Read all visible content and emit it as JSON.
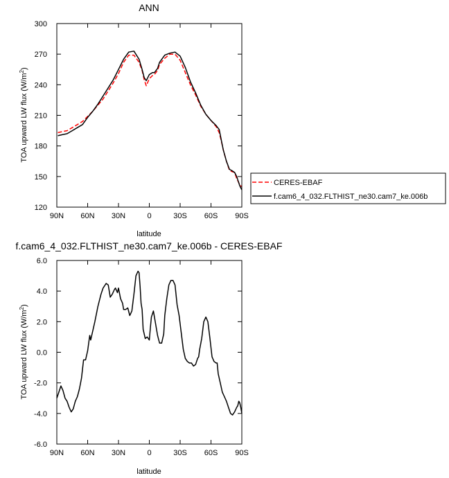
{
  "chart_data": [
    {
      "type": "line",
      "title": "ANN",
      "ylabel": "TOA upward LW flux (W/m",
      "ylabel_sup": "2",
      "ylabel_close": ")",
      "xlabel": "latitude",
      "xlim": [
        -90,
        90
      ],
      "ylim": [
        120,
        300
      ],
      "xticks": [
        -90,
        -60,
        -30,
        0,
        30,
        60,
        90
      ],
      "xtick_labels": [
        "90N",
        "60N",
        "30N",
        "0",
        "30S",
        "60S",
        "90S"
      ],
      "yticks": [
        120,
        150,
        180,
        210,
        240,
        270,
        300
      ],
      "ytick_labels": [
        "120",
        "150",
        "180",
        "210",
        "240",
        "270",
        "300"
      ],
      "legend": "outside-right",
      "series": [
        {
          "name": "CERES-EBAF",
          "color": "#ff0000",
          "dash": "dashed",
          "x": [
            -89,
            -85,
            -80,
            -75,
            -70,
            -65,
            -60,
            -55,
            -50,
            -45,
            -40,
            -35,
            -30,
            -25,
            -20,
            -15,
            -10,
            -7,
            -5,
            -3,
            0,
            3,
            5,
            8,
            10,
            15,
            20,
            25,
            30,
            35,
            40,
            45,
            50,
            55,
            60,
            65,
            68,
            70,
            72,
            75,
            78,
            80,
            83,
            85,
            88,
            90
          ],
          "y": [
            193,
            194,
            195,
            198,
            201,
            204,
            209,
            214,
            220,
            226,
            234,
            242,
            251,
            262,
            269,
            269,
            262,
            254,
            245,
            239,
            246,
            249,
            250,
            254,
            260,
            266,
            270,
            270,
            264,
            252,
            240,
            230,
            219,
            211,
            205,
            199,
            193,
            185,
            176,
            165,
            156,
            155,
            154,
            148,
            142,
            140
          ]
        },
        {
          "name": "f.cam6_4_032.FLTHIST_ne30.cam7_ke.006b",
          "color": "#000000",
          "dash": "solid",
          "x": [
            -89,
            -85,
            -80,
            -75,
            -70,
            -65,
            -60,
            -55,
            -50,
            -45,
            -40,
            -35,
            -30,
            -25,
            -20,
            -15,
            -10,
            -7,
            -5,
            -3,
            0,
            3,
            5,
            8,
            10,
            15,
            20,
            25,
            30,
            35,
            40,
            45,
            50,
            55,
            60,
            65,
            68,
            70,
            72,
            75,
            78,
            80,
            83,
            85,
            88,
            90
          ],
          "y": [
            190,
            191,
            192,
            195,
            198,
            201,
            208,
            214,
            221,
            229,
            237,
            245,
            255,
            265,
            272,
            273,
            265,
            255,
            247,
            244,
            250,
            252,
            252,
            256,
            262,
            269,
            271,
            272,
            268,
            257,
            243,
            232,
            220,
            211,
            205,
            200,
            196,
            186,
            176,
            165,
            157,
            156,
            154,
            150,
            141,
            137
          ]
        }
      ]
    },
    {
      "type": "line",
      "title": "f.cam6_4_032.FLTHIST_ne30.cam7_ke.006b - CERES-EBAF",
      "ylabel": "TOA upward LW flux (W/m",
      "ylabel_sup": "2",
      "ylabel_close": ")",
      "xlabel": "latitude",
      "xlim": [
        -90,
        90
      ],
      "ylim": [
        -6,
        6
      ],
      "xticks": [
        -90,
        -60,
        -30,
        0,
        30,
        60,
        90
      ],
      "xtick_labels": [
        "90N",
        "60N",
        "30N",
        "0",
        "30S",
        "60S",
        "90S"
      ],
      "yticks": [
        -6,
        -4,
        -2,
        0,
        2,
        4,
        6
      ],
      "ytick_labels": [
        "-6.0",
        "-4.0",
        "-2.0",
        "0.0",
        "2.0",
        "4.0",
        "6.0"
      ],
      "series": [
        {
          "color": "#000000",
          "dash": "solid",
          "x": [
            -90,
            -88,
            -86,
            -84,
            -82,
            -80,
            -78,
            -76,
            -74,
            -72,
            -70,
            -68,
            -66,
            -64,
            -62,
            -60,
            -58,
            -57,
            -55,
            -53,
            -50,
            -47,
            -45,
            -42,
            -40,
            -38,
            -36,
            -34,
            -33,
            -31,
            -30,
            -28,
            -26,
            -25,
            -23,
            -21,
            -19,
            -17,
            -15,
            -13,
            -11,
            -10,
            -9,
            -8,
            -7,
            -6,
            -4,
            -2,
            0,
            1,
            2,
            4,
            6,
            8,
            10,
            12,
            14,
            15,
            17,
            19,
            21,
            23,
            25,
            27,
            29,
            31,
            33,
            35,
            37,
            39,
            41,
            43,
            45,
            47,
            48,
            49,
            51,
            53,
            55,
            57,
            59,
            61,
            63,
            65,
            66,
            67,
            69,
            71,
            73,
            75,
            77,
            79,
            81,
            83,
            85,
            86,
            87,
            88,
            89,
            90
          ],
          "y": [
            -3.0,
            -2.6,
            -2.2,
            -2.5,
            -3.0,
            -3.2,
            -3.6,
            -3.9,
            -3.7,
            -3.2,
            -2.9,
            -2.4,
            -1.7,
            -0.5,
            -0.5,
            0.1,
            1.1,
            0.8,
            1.4,
            2.0,
            3.0,
            3.8,
            4.2,
            4.5,
            4.4,
            3.6,
            3.8,
            4.1,
            4.2,
            3.9,
            4.2,
            3.5,
            3.2,
            2.8,
            2.8,
            2.9,
            2.4,
            2.7,
            3.8,
            5.0,
            5.3,
            5.2,
            4.3,
            3.2,
            2.8,
            1.5,
            0.9,
            1.0,
            0.8,
            1.6,
            2.3,
            2.7,
            1.9,
            1.1,
            0.6,
            0.6,
            1.2,
            2.4,
            3.5,
            4.4,
            4.7,
            4.7,
            4.4,
            3.1,
            2.4,
            1.3,
            0.2,
            -0.4,
            -0.6,
            -0.7,
            -0.7,
            -0.9,
            -0.8,
            -0.4,
            -0.3,
            0.2,
            0.9,
            2.0,
            2.3,
            2.0,
            0.9,
            -0.3,
            -0.6,
            -0.7,
            -0.7,
            -1.4,
            -2.0,
            -2.6,
            -2.9,
            -3.2,
            -3.6,
            -4.0,
            -4.1,
            -3.9,
            -3.6,
            -3.5,
            -3.2,
            -3.3,
            -3.6,
            -4.0
          ]
        }
      ]
    }
  ]
}
